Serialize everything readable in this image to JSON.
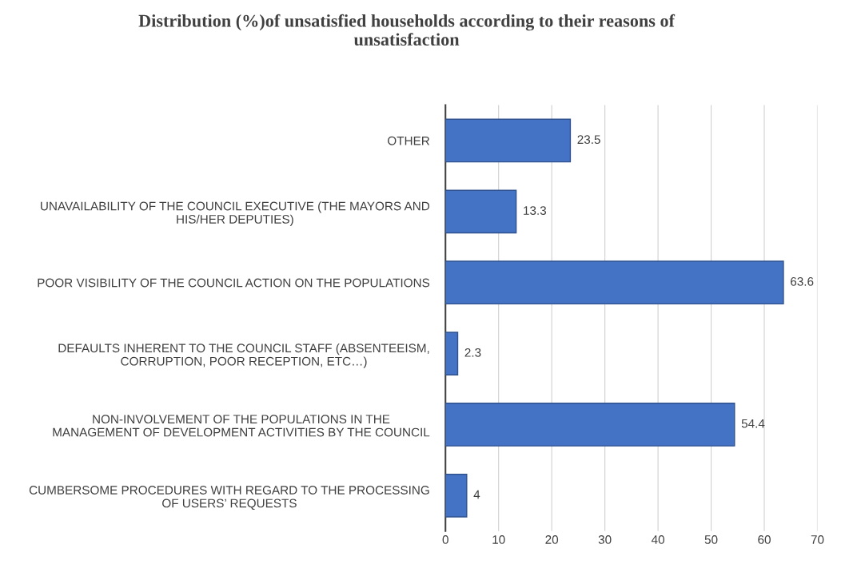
{
  "chart_data": {
    "type": "bar",
    "orientation": "horizontal",
    "title": "Distribution (%)of unsatisfied households according to their reasons of\nunsatisfaction",
    "categories": [
      "OTHER",
      "UNAVAILABILITY OF THE COUNCIL EXECUTIVE (THE MAYORS AND\nHIS/HER DEPUTIES)",
      "POOR VISIBILITY OF THE COUNCIL ACTION ON THE POPULATIONS",
      "DEFAULTS INHERENT TO THE COUNCIL STAFF (ABSENTEEISM,\nCORRUPTION, POOR RECEPTION, ETC…)",
      "NON-INVOLVEMENT OF THE POPULATIONS IN THE\nMANAGEMENT OF DEVELOPMENT ACTIVITIES BY THE COUNCIL",
      "CUMBERSOME PROCEDURES WITH REGARD TO THE PROCESSING\nOF USERS’ REQUESTS"
    ],
    "values": [
      23.5,
      13.3,
      63.6,
      2.3,
      54.4,
      4
    ],
    "color": "#4472c4",
    "xlim": [
      0,
      70
    ],
    "xticks": [
      0,
      10,
      20,
      30,
      40,
      50,
      60,
      70
    ],
    "grid": "x",
    "data_labels": true
  }
}
